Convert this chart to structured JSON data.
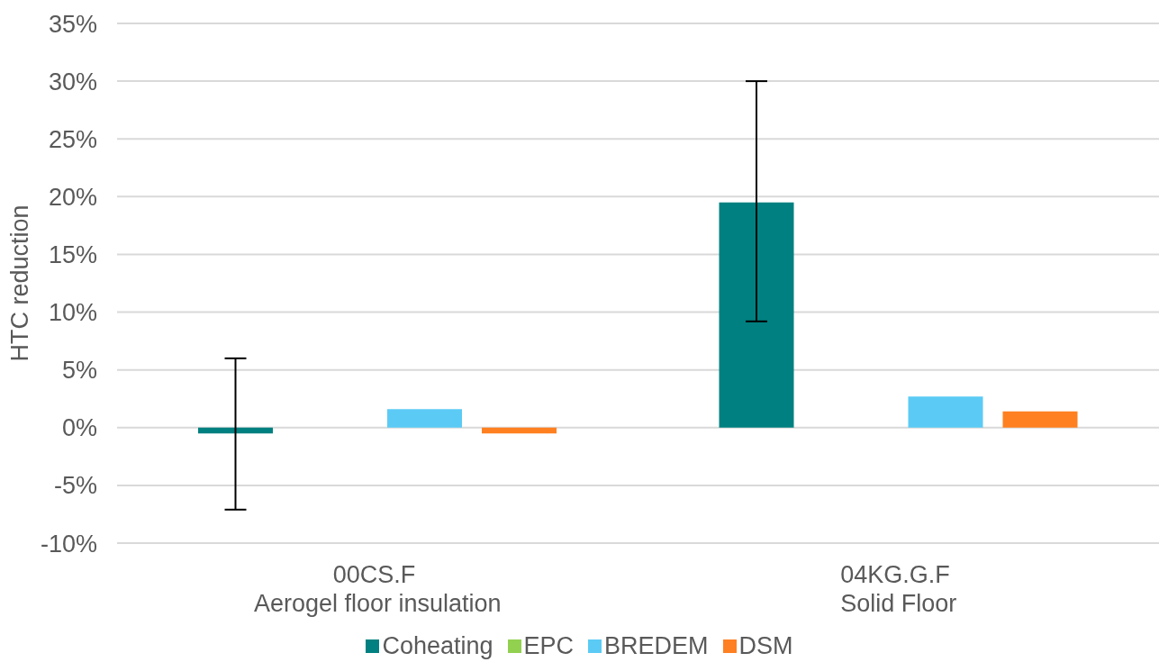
{
  "chart_data": {
    "type": "bar",
    "ylabel": "HTC reduction",
    "categories": [
      "00CS.F\nAerogel floor insulation",
      "04KG.G.F\nSolid Floor"
    ],
    "series": [
      {
        "name": "Coheating",
        "color": "#008080",
        "values": [
          -0.5,
          19.5
        ],
        "errors": [
          [
            -7.1,
            6.0
          ],
          [
            9.2,
            30.0
          ]
        ]
      },
      {
        "name": "EPC",
        "color": "#92d050",
        "values": [
          null,
          null
        ]
      },
      {
        "name": "BREDEM",
        "color": "#5bcbf5",
        "values": [
          1.6,
          2.7
        ]
      },
      {
        "name": "DSM",
        "color": "#ff8021",
        "values": [
          -0.5,
          1.4
        ]
      }
    ],
    "ylim": [
      -10,
      35
    ],
    "yticks": [
      {
        "value": -10,
        "label": "-10%"
      },
      {
        "value": -5,
        "label": "-5%"
      },
      {
        "value": 0,
        "label": "0%"
      },
      {
        "value": 5,
        "label": "5%"
      },
      {
        "value": 10,
        "label": "10%"
      },
      {
        "value": 15,
        "label": "15%"
      },
      {
        "value": 20,
        "label": "20%"
      },
      {
        "value": 25,
        "label": "25%"
      },
      {
        "value": 30,
        "label": "30%"
      },
      {
        "value": 35,
        "label": "35%"
      }
    ],
    "grid": "y",
    "legend": "bottom"
  }
}
